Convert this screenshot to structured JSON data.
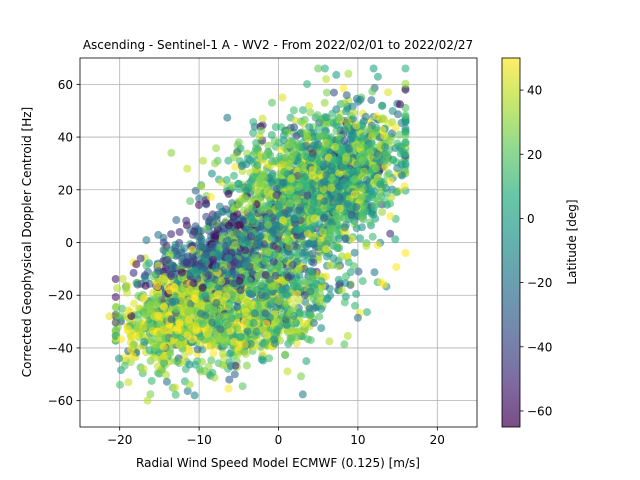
{
  "chart_data": {
    "type": "scatter",
    "title": "Ascending - Sentinel-1 A - WV2 - From 2022/02/01 to 2022/02/27",
    "xlabel": "Radial Wind Speed Model ECMWF (0.125) [m/s]",
    "ylabel": "Corrected Geophysical Doppler Centroid [Hz]",
    "xlim": [
      -25,
      25
    ],
    "ylim": [
      -70,
      70
    ],
    "xticks": [
      -20,
      -10,
      0,
      10,
      20
    ],
    "yticks": [
      -60,
      -40,
      -20,
      0,
      20,
      40,
      60
    ],
    "grid": true,
    "marker_alpha": 0.6,
    "colorbar": {
      "label": "Latitude [deg]",
      "range": [
        -65,
        50
      ],
      "ticks": [
        -60,
        -40,
        -20,
        0,
        20,
        40
      ],
      "colormap": "viridis"
    },
    "points": [
      {
        "x": -21.3,
        "y": -28,
        "lat": 46
      },
      {
        "x": -18.9,
        "y": -53,
        "lat": 42
      },
      {
        "x": -17.0,
        "y": -48,
        "lat": 40
      },
      {
        "x": -16.5,
        "y": -60,
        "lat": 38
      },
      {
        "x": -14.2,
        "y": -40,
        "lat": -45
      },
      {
        "x": -13.0,
        "y": -55,
        "lat": 42
      },
      {
        "x": -11.2,
        "y": -54,
        "lat": 36
      },
      {
        "x": -6.2,
        "y": -52,
        "lat": -30
      },
      {
        "x": -5.5,
        "y": -50,
        "lat": -25
      },
      {
        "x": 3.5,
        "y": -45,
        "lat": 5
      },
      {
        "x": -13.5,
        "y": 34,
        "lat": 30
      },
      {
        "x": -11.5,
        "y": 28,
        "lat": 40
      },
      {
        "x": -9.5,
        "y": 31,
        "lat": 36
      },
      {
        "x": -8.0,
        "y": 30,
        "lat": 30
      },
      {
        "x": -5.0,
        "y": 38,
        "lat": 25
      },
      {
        "x": -2.0,
        "y": 47,
        "lat": 42
      },
      {
        "x": 0.5,
        "y": 55,
        "lat": 45
      },
      {
        "x": 5.0,
        "y": 66,
        "lat": 22
      },
      {
        "x": 6.0,
        "y": 62,
        "lat": 38
      },
      {
        "x": 8.8,
        "y": 64,
        "lat": 34
      },
      {
        "x": 13.8,
        "y": 57,
        "lat": 45
      },
      {
        "x": 12.5,
        "y": -1,
        "lat": 48
      },
      {
        "x": 9.5,
        "y": -9,
        "lat": 18
      },
      {
        "x": 7.5,
        "y": -18,
        "lat": -20
      },
      {
        "x": 16.0,
        "y": 32,
        "lat": 18
      }
    ],
    "clusters": [
      {
        "cx": -4,
        "cy": -20,
        "sx": 6.5,
        "sy": 13,
        "rho": 0.45,
        "n": 900,
        "lat_mean": 15,
        "lat_sd": 28
      },
      {
        "cx": -12,
        "cy": -28,
        "sx": 4,
        "sy": 9,
        "rho": 0.35,
        "n": 650,
        "lat_mean": 35,
        "lat_sd": 14
      },
      {
        "cx": -8,
        "cy": -6,
        "sx": 5,
        "sy": 10,
        "rho": 0.45,
        "n": 500,
        "lat_mean": -35,
        "lat_sd": 18
      },
      {
        "cx": 3,
        "cy": 18,
        "sx": 6,
        "sy": 16,
        "rho": 0.55,
        "n": 900,
        "lat_mean": 5,
        "lat_sd": 25
      },
      {
        "cx": 8,
        "cy": 25,
        "sx": 3.5,
        "sy": 11,
        "rho": 0.35,
        "n": 800,
        "lat_mean": 12,
        "lat_sd": 22
      },
      {
        "cx": 1,
        "cy": 28,
        "sx": 4,
        "sy": 12,
        "rho": 0.3,
        "n": 250,
        "lat_mean": 25,
        "lat_sd": 15
      },
      {
        "cx": -2,
        "cy": -32,
        "sx": 4,
        "sy": 7,
        "rho": 0.3,
        "n": 250,
        "lat_mean": 30,
        "lat_sd": 20
      }
    ]
  }
}
